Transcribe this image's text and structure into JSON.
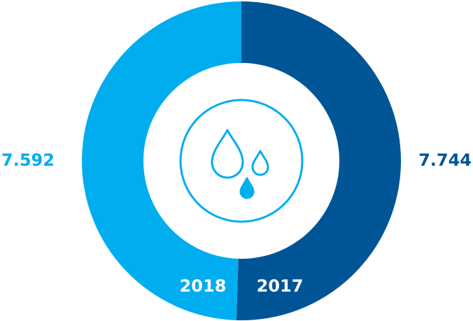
{
  "chart_data": {
    "type": "donut",
    "categories": [
      "2017",
      "2018"
    ],
    "series": [
      {
        "values": [
          7.744,
          7.592
        ],
        "colors": [
          "#005596",
          "#00adef"
        ]
      }
    ]
  }
}
